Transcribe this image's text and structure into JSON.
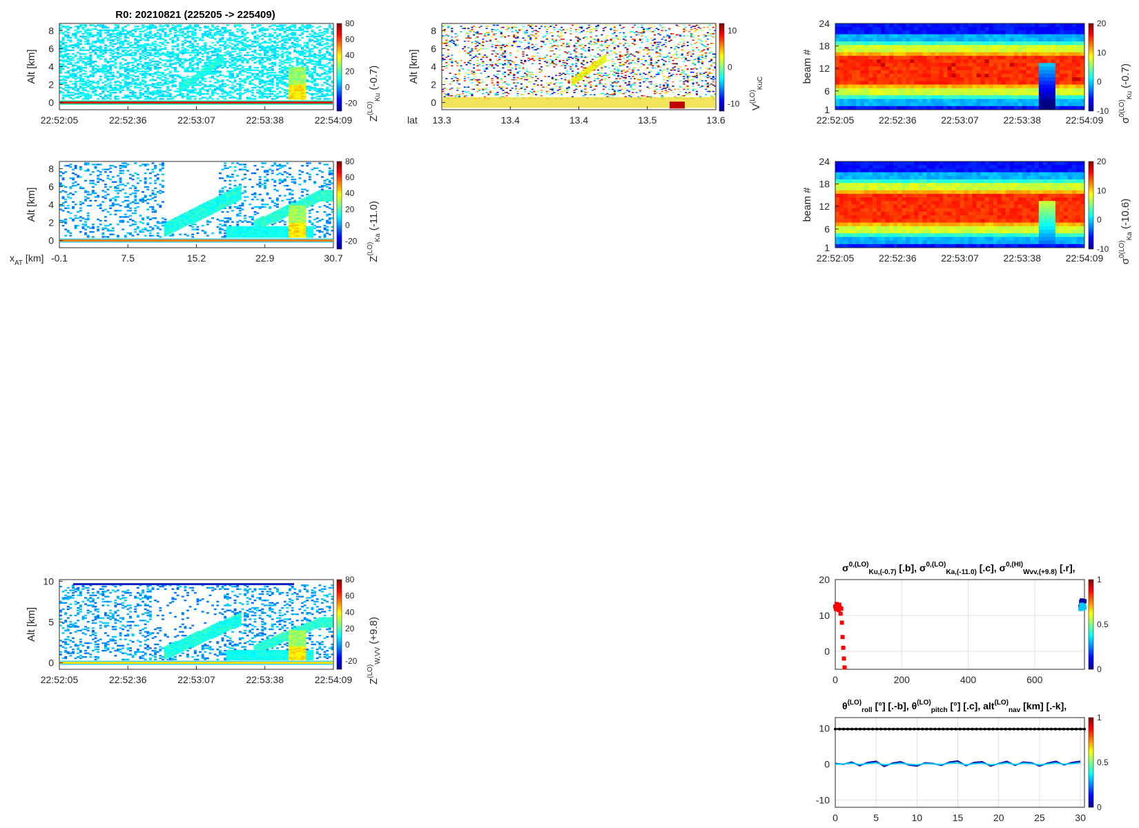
{
  "figure_title": "R0:  20210821 (225205 -> 225409)",
  "colors": {
    "axis": "#262626",
    "red_series": "#ff0000",
    "cyan_series": "#00c8ff",
    "blue_series": "#0000a0",
    "black_series": "#000000",
    "grid": "#e0e0e0"
  },
  "colormap": "jet",
  "chart_data": [
    {
      "type": "heatmap",
      "ylabel": "Alt [km]",
      "x_ticks": [
        "22:52:05",
        "22:52:36",
        "22:53:07",
        "22:53:38",
        "22:54:09"
      ],
      "y_ticks": [
        "0",
        "2",
        "4",
        "6",
        "8"
      ],
      "ylim": [
        -0.8,
        8.8
      ],
      "colorbar": {
        "ticks": [
          "80",
          "60",
          "40",
          "20",
          "0",
          "-20"
        ],
        "range": [
          -30,
          80
        ],
        "label_main": "Z",
        "label_sup": "(LO)",
        "label_sub": "Ku",
        "label_tail": " (-0.7)"
      }
    },
    {
      "type": "heatmap",
      "ylabel": "Alt [km]",
      "x_prefix": "lat",
      "x_ticks": [
        "13.3",
        "13.4",
        "13.4",
        "13.5",
        "13.6"
      ],
      "y_ticks": [
        "0",
        "2",
        "4",
        "6",
        "8"
      ],
      "ylim": [
        -0.8,
        8.8
      ],
      "colorbar": {
        "ticks": [
          "10",
          "0",
          "-10"
        ],
        "range": [
          -12,
          12
        ],
        "label_main": "V",
        "label_sup": "(LO)",
        "label_sub": "KuC",
        "label_tail": ""
      }
    },
    {
      "type": "heatmap",
      "ylabel": "beam #",
      "x_ticks": [
        "22:52:05",
        "22:52:36",
        "22:53:07",
        "22:53:38",
        "22:54:09"
      ],
      "y_ticks": [
        "24",
        "18",
        "12",
        "6",
        "1"
      ],
      "ylim": [
        1,
        24
      ],
      "colorbar": {
        "ticks": [
          "20",
          "10",
          "0",
          "-10"
        ],
        "range": [
          -10,
          20
        ],
        "label_main": "σ",
        "label_sup": "0(LO)",
        "label_sub": "Ku",
        "label_tail": " (-0.7)"
      }
    },
    {
      "type": "heatmap",
      "ylabel": "Alt [km]",
      "x_prefix": "x",
      "x_prefix_sub": "AT",
      "x_prefix_tail": " [km]",
      "x_ticks": [
        "-0.1",
        "7.5",
        "15.2",
        "22.9",
        "30.7"
      ],
      "y_ticks": [
        "0",
        "2",
        "4",
        "6",
        "8"
      ],
      "ylim": [
        -0.8,
        8.8
      ],
      "colorbar": {
        "ticks": [
          "80",
          "60",
          "40",
          "20",
          "0",
          "-20"
        ],
        "range": [
          -30,
          80
        ],
        "label_main": "Z",
        "label_sup": "(LO)",
        "label_sub": "Ka",
        "label_tail": " (-11.0)"
      }
    },
    {
      "type": "heatmap",
      "ylabel": "beam #",
      "x_ticks": [
        "22:52:05",
        "22:52:36",
        "22:53:07",
        "22:53:38",
        "22:54:09"
      ],
      "y_ticks": [
        "24",
        "18",
        "12",
        "6",
        "1"
      ],
      "ylim": [
        1,
        24
      ],
      "colorbar": {
        "ticks": [
          "20",
          "10",
          "0",
          "-10"
        ],
        "range": [
          -10,
          20
        ],
        "label_main": "σ",
        "label_sup": "0(LO)",
        "label_sub": "Ka",
        "label_tail": " (-10.6)"
      }
    },
    {
      "type": "heatmap",
      "ylabel": "Alt [km]",
      "x_ticks": [
        "22:52:05",
        "22:52:36",
        "22:53:07",
        "22:53:38",
        "22:54:09"
      ],
      "y_ticks": [
        "0",
        "5",
        "10"
      ],
      "ylim": [
        -0.8,
        10.2
      ],
      "colorbar": {
        "ticks": [
          "80",
          "60",
          "40",
          "20",
          "0",
          "-20"
        ],
        "range": [
          -30,
          80
        ],
        "label_main": "Z",
        "label_sup": "(LO)",
        "label_sub": "W,VV",
        "label_tail": " (+9.8)"
      }
    },
    {
      "type": "scatter",
      "title_parts": [
        {
          "main": "σ",
          "sup": "0,(LO)",
          "sub": "Ku,(-0.7)",
          "tail": " [.b],  "
        },
        {
          "main": "σ",
          "sup": "0,(LO)",
          "sub": "Ka,(-11.0)",
          "tail": " [.c],  "
        },
        {
          "main": "σ",
          "sup": "0,(HI)",
          "sub": "Wvv,(+9.8)",
          "tail": " [.r],"
        }
      ],
      "x_ticks": [
        "0",
        "200",
        "400",
        "600"
      ],
      "x_tick_values": [
        0,
        200,
        400,
        600
      ],
      "xlim": [
        0,
        750
      ],
      "y_ticks": [
        "20",
        "10",
        "0"
      ],
      "y_tick_values": [
        20,
        10,
        0
      ],
      "ylim": [
        -5,
        20
      ],
      "grid": true,
      "colorbar": {
        "ticks": [
          "1",
          "0.5",
          "0"
        ],
        "range": [
          0,
          1
        ]
      },
      "series": [
        {
          "color": "red",
          "x": [
            0,
            2,
            4,
            6,
            8,
            10,
            12,
            14,
            16,
            18,
            20,
            22,
            24,
            26,
            28
          ],
          "y": [
            12.5,
            11.8,
            13.2,
            12.0,
            12.9,
            11.5,
            13.0,
            12.2,
            10.5,
            11.9,
            8.0,
            4.0,
            1.0,
            -2.0,
            -4.5
          ]
        },
        {
          "color": "blue",
          "x": [
            738,
            740,
            742,
            744,
            746,
            748,
            750
          ],
          "y": [
            12.5,
            13.8,
            14.2,
            13.5,
            12.8,
            13.6,
            14.0
          ]
        },
        {
          "color": "cyan",
          "x": [
            738,
            740,
            742,
            744,
            746,
            748,
            750
          ],
          "y": [
            11.8,
            12.6,
            13.0,
            12.4,
            11.9,
            12.8,
            12.2
          ]
        }
      ]
    },
    {
      "type": "line",
      "title_parts": [
        {
          "main": "θ",
          "sup": "(LO)",
          "sub": "roll",
          "tail": " [°] [.-b],  "
        },
        {
          "main": "θ",
          "sup": "(LO)",
          "sub": "pitch",
          "tail": " [°] [.c],  "
        },
        {
          "main": "alt",
          "sup": "(LO)",
          "sub": "nav",
          "tail": " [km] [.-k],"
        }
      ],
      "x_ticks": [
        "0",
        "5",
        "10",
        "15",
        "20",
        "25",
        "30"
      ],
      "x_tick_values": [
        0,
        5,
        10,
        15,
        20,
        25,
        30
      ],
      "xlim": [
        0,
        30.5
      ],
      "y_ticks": [
        "10",
        "0",
        "-10"
      ],
      "y_tick_values": [
        10,
        0,
        -10
      ],
      "ylim": [
        -12,
        13
      ],
      "grid": true,
      "colorbar": {
        "ticks": [
          "1",
          "0.5",
          "0"
        ],
        "range": [
          0,
          1
        ]
      },
      "series": [
        {
          "color": "black",
          "x": [
            0,
            30.5
          ],
          "y": [
            9.8,
            9.8
          ]
        },
        {
          "color": "blue",
          "x": [
            0,
            1,
            2,
            3,
            4,
            5,
            6,
            7,
            8,
            9,
            10,
            11,
            12,
            13,
            14,
            15,
            16,
            17,
            18,
            19,
            20,
            21,
            22,
            23,
            24,
            25,
            26,
            27,
            28,
            29,
            30
          ],
          "y": [
            0.2,
            0.0,
            0.6,
            -0.4,
            0.5,
            0.8,
            -0.6,
            0.3,
            0.7,
            -0.2,
            -0.5,
            0.4,
            0.2,
            -0.3,
            0.6,
            0.9,
            -0.4,
            0.5,
            0.7,
            -0.5,
            0.2,
            0.8,
            -0.3,
            0.6,
            0.4,
            -0.5,
            0.3,
            0.8,
            -0.2,
            0.5,
            0.8
          ]
        },
        {
          "color": "cyan",
          "x": [
            0,
            1,
            2,
            3,
            4,
            5,
            6,
            7,
            8,
            9,
            10,
            11,
            12,
            13,
            14,
            15,
            16,
            17,
            18,
            19,
            20,
            21,
            22,
            23,
            24,
            25,
            26,
            27,
            28,
            29,
            30
          ],
          "y": [
            0.0,
            0.1,
            0.3,
            -0.1,
            0.2,
            0.4,
            -0.2,
            0.1,
            0.3,
            0.0,
            -0.2,
            0.2,
            0.1,
            -0.1,
            0.3,
            0.4,
            -0.2,
            0.2,
            0.3,
            -0.2,
            0.1,
            0.4,
            -0.1,
            0.3,
            0.2,
            -0.2,
            0.1,
            0.4,
            0.0,
            0.2,
            0.4
          ]
        }
      ]
    }
  ]
}
